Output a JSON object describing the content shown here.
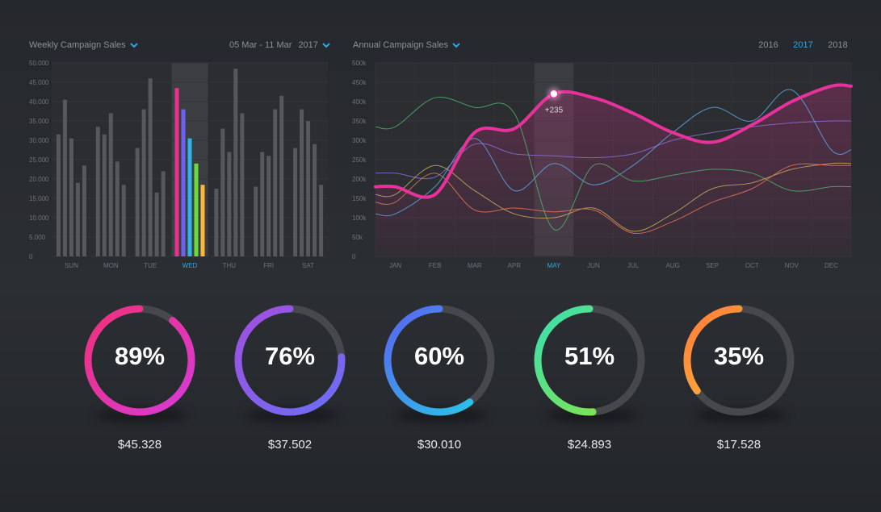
{
  "weekly": {
    "title": "Weekly Campaign Sales",
    "date_range": "05 Mar - 11 Mar",
    "year": "2017"
  },
  "annual": {
    "title": "Annual Campaign Sales",
    "years": [
      "2016",
      "2017",
      "2018"
    ],
    "active_year": "2017",
    "annotation": "+235"
  },
  "colors": {
    "accent": "#2ea8e0",
    "bar_gray": "#56585c",
    "bar_highlight": [
      "#ec2f8f",
      "#6b63f0",
      "#2bb6e6",
      "#6bdc3a",
      "#fbb63c"
    ]
  },
  "chart_data": [
    {
      "type": "bar",
      "title": "Weekly Campaign Sales",
      "categories": [
        "SUN",
        "MON",
        "TUE",
        "WED",
        "THU",
        "FRI",
        "SAT"
      ],
      "highlight_category": "WED",
      "ylim": [
        0,
        50000
      ],
      "yticks": [
        "0",
        "5.000",
        "10.000",
        "15.000",
        "20.000",
        "25.000",
        "30.000",
        "35.000",
        "40.000",
        "45.000",
        "50.000"
      ],
      "groups": [
        [
          31500,
          40500,
          30500,
          19000,
          23500
        ],
        [
          33500,
          31500,
          37000,
          24500,
          18500
        ],
        [
          28000,
          38000,
          46000,
          16500,
          22000
        ],
        [
          43500,
          38000,
          30500,
          24000,
          18500
        ],
        [
          17500,
          33000,
          27000,
          48500,
          37000
        ],
        [
          18000,
          27000,
          26000,
          38000,
          41500
        ],
        [
          28000,
          38000,
          35000,
          29000,
          18500
        ]
      ]
    },
    {
      "type": "line",
      "title": "Annual Campaign Sales",
      "x": [
        "JAN",
        "FEB",
        "MAR",
        "APR",
        "MAY",
        "JUN",
        "JUL",
        "AUG",
        "SEP",
        "OCT",
        "NOV",
        "DEC"
      ],
      "highlight_x": "MAY",
      "ylim": [
        0,
        500000
      ],
      "yticks": [
        "0",
        "50k",
        "100k",
        "150k",
        "200k",
        "250k",
        "300k",
        "350k",
        "400k",
        "450k",
        "500k"
      ],
      "series": [
        {
          "color": "#e8329b",
          "width": 4,
          "main": true,
          "values": [
            180000,
            160000,
            320000,
            330000,
            420000,
            410000,
            370000,
            320000,
            295000,
            340000,
            400000,
            440000
          ]
        },
        {
          "color": "#8a6fd6",
          "width": 1,
          "values": [
            215000,
            205000,
            290000,
            265000,
            260000,
            255000,
            265000,
            300000,
            320000,
            335000,
            345000,
            350000
          ]
        },
        {
          "color": "#5aa9e6",
          "width": 1,
          "values": [
            110000,
            180000,
            305000,
            170000,
            240000,
            185000,
            235000,
            320000,
            385000,
            350000,
            430000,
            275000
          ]
        },
        {
          "color": "#4fb06a",
          "width": 1,
          "values": [
            335000,
            410000,
            385000,
            370000,
            70000,
            235000,
            195000,
            210000,
            225000,
            215000,
            170000,
            180000
          ]
        },
        {
          "color": "#c9a85a",
          "width": 1,
          "values": [
            160000,
            235000,
            170000,
            110000,
            100000,
            125000,
            65000,
            110000,
            175000,
            190000,
            225000,
            240000
          ]
        },
        {
          "color": "#e8745a",
          "width": 1,
          "values": [
            140000,
            215000,
            120000,
            125000,
            115000,
            120000,
            60000,
            90000,
            140000,
            175000,
            235000,
            235000
          ]
        }
      ]
    },
    {
      "type": "pie",
      "kpis": [
        {
          "percent": 89,
          "label": "89%",
          "amount": "$45.328",
          "colors": [
            "#d63bd8",
            "#f0307a"
          ]
        },
        {
          "percent": 76,
          "label": "76%",
          "amount": "$37.502",
          "colors": [
            "#6a6ef5",
            "#a24fe0"
          ]
        },
        {
          "percent": 60,
          "label": "60%",
          "amount": "$30.010",
          "colors": [
            "#25cde8",
            "#5a63f0"
          ]
        },
        {
          "percent": 51,
          "label": "51%",
          "amount": "$24.893",
          "colors": [
            "#8ee53a",
            "#3adfb2"
          ]
        },
        {
          "percent": 35,
          "label": "35%",
          "amount": "$17.528",
          "colors": [
            "#ffd23a",
            "#ff7a3a"
          ]
        }
      ]
    }
  ]
}
